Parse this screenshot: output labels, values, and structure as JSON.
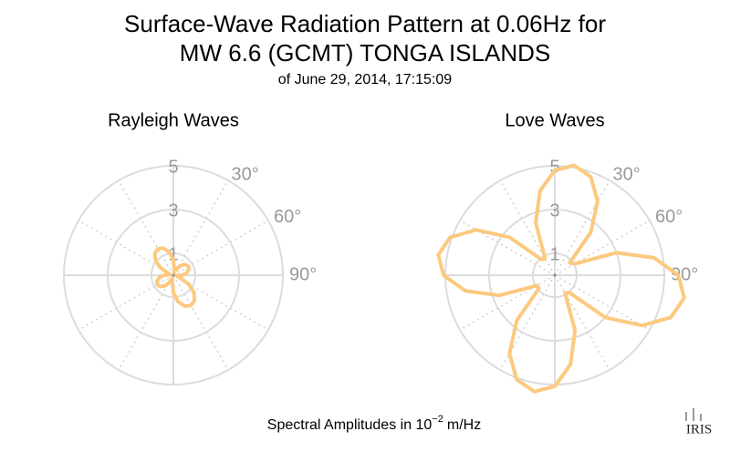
{
  "header": {
    "title_lines": [
      "Surface-Wave Radiation Pattern at 0.06Hz for",
      "MW 6.6 (GCMT) TONGA ISLANDS"
    ],
    "subtitle": "of June 29, 2014, 17:15:09"
  },
  "chart_data": [
    {
      "type": "polar",
      "title": "Rayleigh Waves",
      "color": "#fcc97f",
      "theta": [
        0,
        10,
        20,
        30,
        40,
        50,
        60,
        70,
        80,
        90,
        100,
        110,
        120,
        130,
        140,
        150,
        160,
        170,
        180,
        190,
        200,
        210,
        220,
        230,
        240,
        250,
        260,
        270,
        280,
        290,
        300,
        310,
        320,
        330,
        340,
        350
      ],
      "r": [
        0.7,
        0.24,
        0.14,
        0.4,
        0.61,
        0.75,
        0.8,
        0.75,
        0.61,
        0.4,
        0.14,
        0.28,
        0.8,
        1.23,
        1.5,
        1.6,
        1.5,
        1.23,
        0.8,
        0.28,
        0.15,
        0.425,
        0.65,
        0.8,
        0.85,
        0.8,
        0.65,
        0.425,
        0.15,
        0.24,
        0.7,
        1.07,
        1.32,
        1.4,
        1.32,
        1.07
      ],
      "rlim": [
        0,
        5
      ],
      "rticks": [
        1,
        3,
        5
      ],
      "thetaticks": [
        {
          "value": 30,
          "label": "30°"
        },
        {
          "value": 60,
          "label": "60°"
        },
        {
          "value": 90,
          "label": "90°"
        }
      ]
    },
    {
      "type": "polar",
      "title": "Love Waves",
      "color": "#fcc97f",
      "theta": [
        0,
        10,
        20,
        30,
        40,
        50,
        60,
        70,
        80,
        90,
        100,
        110,
        120,
        130,
        140,
        150,
        160,
        170,
        180,
        190,
        200,
        210,
        220,
        230,
        240,
        250,
        260,
        270,
        280,
        290,
        300,
        310,
        320,
        330,
        340,
        350
      ],
      "r": [
        4.79,
        5.1,
        4.79,
        3.91,
        2.55,
        0.89,
        1.04,
        3.0,
        4.6,
        5.64,
        6.0,
        5.64,
        4.6,
        3.0,
        1.04,
        0.94,
        2.7,
        4.14,
        5.08,
        5.4,
        5.08,
        4.14,
        2.7,
        0.94,
        0.94,
        2.7,
        4.14,
        5.08,
        5.4,
        5.08,
        4.14,
        2.7,
        0.94,
        0.89,
        2.55,
        3.91
      ],
      "rlim": [
        0,
        5
      ],
      "rticks": [
        1,
        3,
        5
      ],
      "thetaticks": [
        {
          "value": 30,
          "label": "30°"
        },
        {
          "value": 60,
          "label": "60°"
        },
        {
          "value": 90,
          "label": "90°"
        }
      ]
    }
  ],
  "footer": {
    "text": "Spectral Amplitudes in 10",
    "exponent": "−2",
    "unit": "m/Hz"
  },
  "logo": "IRIS"
}
